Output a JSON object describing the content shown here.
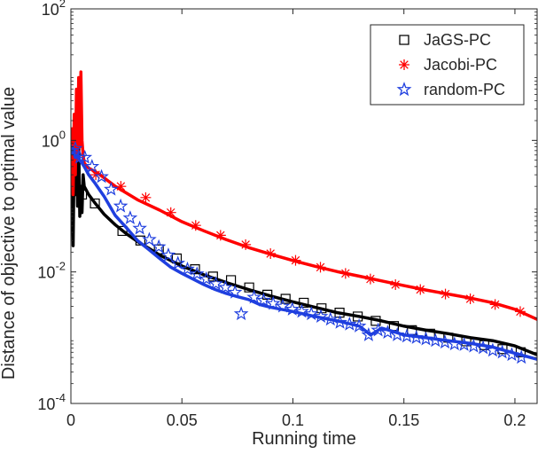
{
  "chart_data": {
    "type": "line",
    "xlabel": "Running time",
    "ylabel": "Distance of objective to optimal value",
    "xlim": [
      0,
      0.21
    ],
    "ylim": [
      0.0001,
      100
    ],
    "yscale": "log",
    "grid": false,
    "legend_position": "top-right",
    "x_ticks": [
      {
        "value": 0,
        "label": "0"
      },
      {
        "value": 0.05,
        "label": "0.05"
      },
      {
        "value": 0.1,
        "label": "0.1"
      },
      {
        "value": 0.15,
        "label": "0.15"
      },
      {
        "value": 0.2,
        "label": "0.2"
      }
    ],
    "y_ticks": [
      {
        "value": 0.0001,
        "base": "10",
        "exp": "-4"
      },
      {
        "value": 0.01,
        "base": "10",
        "exp": "-2"
      },
      {
        "value": 1,
        "base": "10",
        "exp": "0"
      },
      {
        "value": 100,
        "base": "10",
        "exp": "2"
      }
    ],
    "series": [
      {
        "name": "JaGS-PC",
        "color": "#000000",
        "marker": "square",
        "x": [
          0,
          0.0005,
          0.001,
          0.0015,
          0.002,
          0.0025,
          0.003,
          0.0035,
          0.004,
          0.0045,
          0.005,
          0.0055,
          0.006,
          0.008,
          0.011,
          0.015,
          0.02,
          0.025,
          0.03,
          0.035,
          0.04,
          0.05,
          0.06,
          0.07,
          0.08,
          0.09,
          0.1,
          0.11,
          0.12,
          0.13,
          0.14,
          0.15,
          0.16,
          0.17,
          0.18,
          0.19,
          0.2,
          0.21
        ],
        "y": [
          0.7,
          0.3,
          0.025,
          0.8,
          0.15,
          1.0,
          0.1,
          0.9,
          0.07,
          0.2,
          0.08,
          0.3,
          0.2,
          0.15,
          0.11,
          0.075,
          0.052,
          0.038,
          0.029,
          0.023,
          0.018,
          0.0123,
          0.009,
          0.0069,
          0.0054,
          0.0043,
          0.0035,
          0.0029,
          0.0024,
          0.0021,
          0.0018,
          0.0015,
          0.0013,
          0.00115,
          0.001,
          0.0009,
          0.00075,
          0.00055
        ],
        "marker_x": [
          0,
          0.005,
          0.0108,
          0.0232,
          0.0313,
          0.0396,
          0.0477,
          0.0559,
          0.064,
          0.0721,
          0.0803,
          0.0885,
          0.0967,
          0.1049,
          0.1129,
          0.121,
          0.1292,
          0.1373,
          0.1455,
          0.1536,
          0.1618,
          0.17,
          0.1781,
          0.1862,
          0.1944,
          0.2026
        ],
        "marker_y": [
          0.7,
          0.15,
          0.11,
          0.042,
          0.03,
          0.022,
          0.016,
          0.011,
          0.0085,
          0.0075,
          0.0058,
          0.0045,
          0.0039,
          0.0034,
          0.0028,
          0.0024,
          0.0021,
          0.0018,
          0.0015,
          0.0013,
          0.00115,
          0.001,
          0.00088,
          0.00077,
          0.00067,
          0.0006
        ]
      },
      {
        "name": "Jacobi-PC",
        "color": "#ff0000",
        "marker": "asterisk",
        "x": [
          0,
          0.0005,
          0.001,
          0.0015,
          0.002,
          0.0025,
          0.003,
          0.0035,
          0.004,
          0.0045,
          0.005,
          0.0055,
          0.006,
          0.008,
          0.012,
          0.02,
          0.03,
          0.04,
          0.05,
          0.06,
          0.07,
          0.08,
          0.09,
          0.1,
          0.11,
          0.12,
          0.13,
          0.14,
          0.15,
          0.16,
          0.17,
          0.18,
          0.19,
          0.2,
          0.21
        ],
        "y": [
          0.6,
          1.5,
          0.15,
          2.5,
          0.3,
          6,
          0.5,
          9,
          0.8,
          11,
          1.0,
          0.6,
          0.45,
          0.38,
          0.32,
          0.2,
          0.125,
          0.087,
          0.058,
          0.042,
          0.031,
          0.0235,
          0.0186,
          0.0149,
          0.0122,
          0.0101,
          0.0086,
          0.0073,
          0.0062,
          0.0053,
          0.0046,
          0.004,
          0.0034,
          0.0027,
          0.0019
        ],
        "marker_x": [
          0,
          0.0112,
          0.0225,
          0.0337,
          0.045,
          0.0562,
          0.0674,
          0.0787,
          0.0899,
          0.1012,
          0.1124,
          0.1237,
          0.1349,
          0.1462,
          0.1574,
          0.1687,
          0.1799,
          0.1911,
          0.2024
        ],
        "marker_y": [
          0.75,
          0.3,
          0.2,
          0.135,
          0.08,
          0.051,
          0.036,
          0.026,
          0.019,
          0.015,
          0.0118,
          0.0095,
          0.0078,
          0.0064,
          0.0054,
          0.0046,
          0.0039,
          0.0032,
          0.0025
        ]
      },
      {
        "name": "random-PC",
        "color": "#1f3fdf",
        "marker": "star",
        "x": [
          0,
          0.001,
          0.002,
          0.003,
          0.004,
          0.005,
          0.006,
          0.008,
          0.011,
          0.015,
          0.02,
          0.025,
          0.03,
          0.035,
          0.04,
          0.045,
          0.05,
          0.055,
          0.06,
          0.065,
          0.07,
          0.075,
          0.08,
          0.085,
          0.09,
          0.1,
          0.11,
          0.12,
          0.13,
          0.135,
          0.14,
          0.145,
          0.15,
          0.16,
          0.17,
          0.18,
          0.19,
          0.2,
          0.21
        ],
        "y": [
          0.7,
          0.75,
          0.55,
          0.6,
          0.5,
          0.45,
          0.4,
          0.3,
          0.22,
          0.14,
          0.072,
          0.047,
          0.03,
          0.022,
          0.016,
          0.0118,
          0.0095,
          0.0078,
          0.0064,
          0.0054,
          0.0047,
          0.0042,
          0.0038,
          0.0032,
          0.0029,
          0.0025,
          0.0021,
          0.0018,
          0.0015,
          0.0011,
          0.0014,
          0.00125,
          0.0011,
          0.001,
          0.0009,
          0.00082,
          0.00072,
          0.00058,
          0.00047
        ],
        "marker_x": [
          0,
          0.002,
          0.004,
          0.0063,
          0.0095,
          0.0138,
          0.0181,
          0.0224,
          0.0267,
          0.031,
          0.0353,
          0.0396,
          0.0439,
          0.0482,
          0.0525,
          0.0568,
          0.061,
          0.0653,
          0.0696,
          0.0739,
          0.0767,
          0.0825,
          0.0868,
          0.0911,
          0.0954,
          0.0997,
          0.104,
          0.1083,
          0.1126,
          0.1169,
          0.1212,
          0.1255,
          0.1298,
          0.1341,
          0.1384,
          0.1427,
          0.147,
          0.1513,
          0.1556,
          0.1599,
          0.1642,
          0.1685,
          0.1728,
          0.1771,
          0.1814,
          0.1857,
          0.19,
          0.1943,
          0.1986,
          0.2029
        ],
        "marker_y": [
          0.7,
          0.75,
          0.55,
          0.55,
          0.4,
          0.28,
          0.18,
          0.1,
          0.066,
          0.046,
          0.031,
          0.024,
          0.018,
          0.0135,
          0.011,
          0.0093,
          0.0078,
          0.0066,
          0.0058,
          0.0049,
          0.0023,
          0.0041,
          0.0037,
          0.0033,
          0.003,
          0.0027,
          0.0025,
          0.0023,
          0.0021,
          0.0019,
          0.0017,
          0.0016,
          0.0015,
          0.0011,
          0.0013,
          0.0012,
          0.0011,
          0.00105,
          0.001,
          0.00095,
          0.0009,
          0.00085,
          0.0008,
          0.00078,
          0.00074,
          0.0007,
          0.00064,
          0.0006,
          0.00055,
          0.0005
        ]
      }
    ]
  }
}
